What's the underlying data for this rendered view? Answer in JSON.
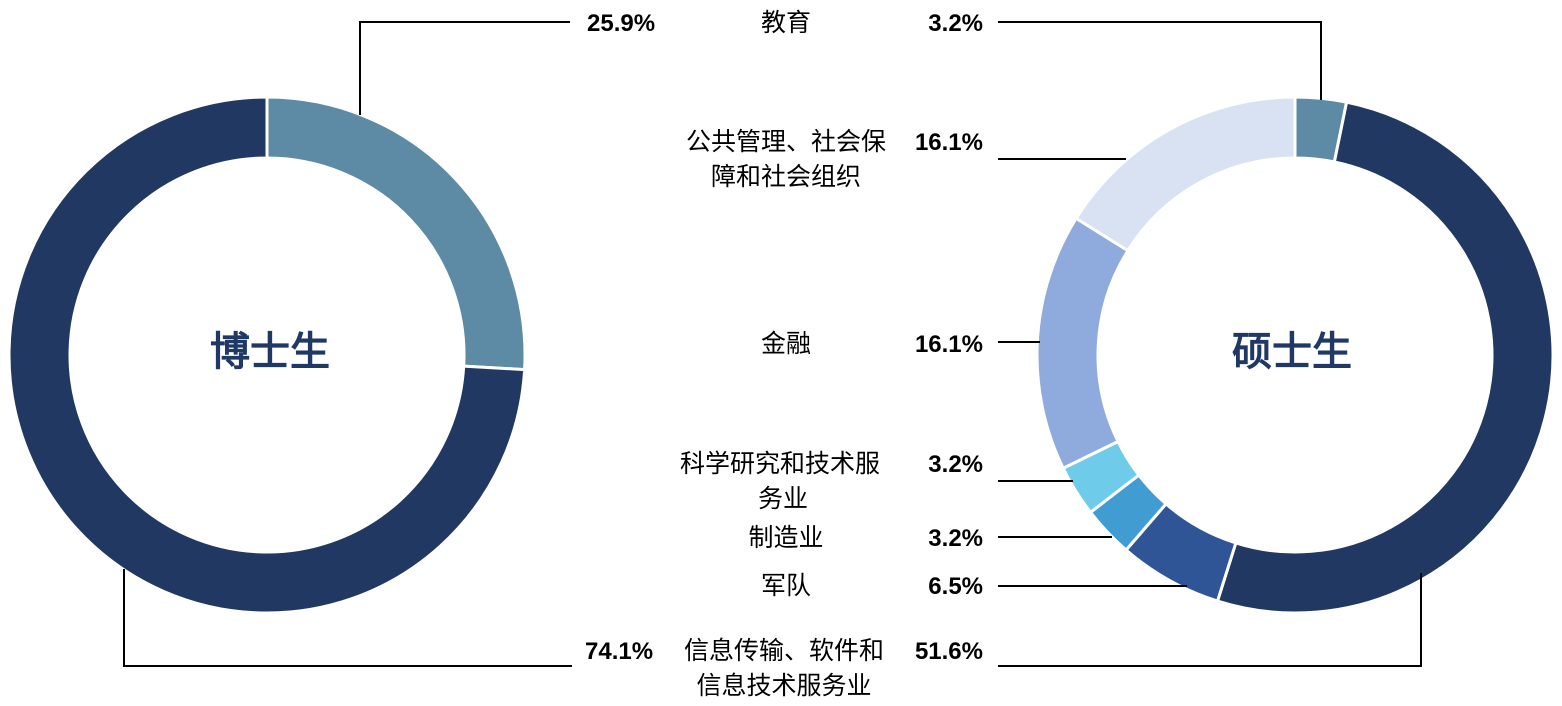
{
  "chart_data": [
    {
      "type": "pie",
      "title": "博士生",
      "slices": [
        {
          "key": "edu",
          "label": "教育",
          "value": 25.9,
          "display": "25.9%",
          "color": "#5d8ba6"
        },
        {
          "key": "info",
          "label": "信息传输、软件和信息技术服务业",
          "value": 74.1,
          "display": "74.1%",
          "color": "#213862"
        }
      ]
    },
    {
      "type": "pie",
      "title": "硕士生",
      "slices": [
        {
          "key": "edu",
          "label": "教育",
          "value": 3.2,
          "display": "3.2%",
          "color": "#5d8ba6"
        },
        {
          "key": "info",
          "label": "信息传输、软件和信息技术服务业",
          "value": 51.6,
          "display": "51.6%",
          "color": "#213862"
        },
        {
          "key": "mil",
          "label": "军队",
          "value": 6.5,
          "display": "6.5%",
          "color": "#2f5597"
        },
        {
          "key": "mfg",
          "label": "制造业",
          "value": 3.2,
          "display": "3.2%",
          "color": "#419dd1"
        },
        {
          "key": "sci",
          "label": "科学研究和技术服务业",
          "value": 3.2,
          "display": "3.2%",
          "color": "#6fcbea"
        },
        {
          "key": "fin",
          "label": "金融",
          "value": 16.1,
          "display": "16.1%",
          "color": "#8faadc"
        },
        {
          "key": "pub",
          "label": "公共管理、社会保障和社会组织",
          "value": 16.1,
          "display": "16.1%",
          "color": "#d9e2f3"
        }
      ]
    }
  ],
  "categories": [
    {
      "key": "edu",
      "lines": [
        "教育"
      ]
    },
    {
      "key": "pub",
      "lines": [
        "公共管理、社会保",
        "障和社会组织"
      ]
    },
    {
      "key": "fin",
      "lines": [
        "金融"
      ]
    },
    {
      "key": "sci",
      "lines": [
        "科学研究和技术服",
        "务业"
      ]
    },
    {
      "key": "mfg",
      "lines": [
        "制造业"
      ]
    },
    {
      "key": "mil",
      "lines": [
        "军队"
      ]
    },
    {
      "key": "info",
      "lines": [
        "信息传输、软件和",
        "信息技术服务业"
      ]
    }
  ]
}
